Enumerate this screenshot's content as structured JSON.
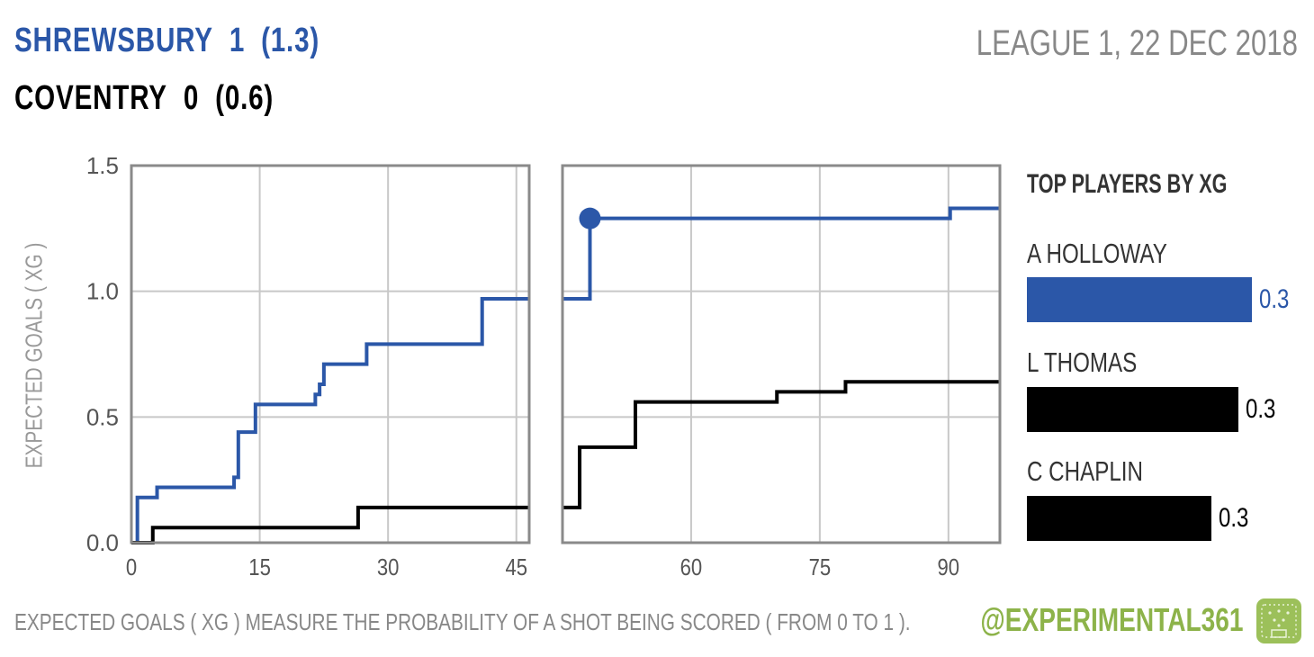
{
  "header": {
    "home_team": "SHREWSBURY",
    "home_goals": "1",
    "home_xg": "(1.3)",
    "away_team": "COVENTRY",
    "away_goals": "0",
    "away_xg": "(0.6)",
    "match_info": "LEAGUE 1, 22 DEC 2018"
  },
  "colors": {
    "home": "#2b57a8",
    "away": "#000000",
    "grid": "#c8c8c8",
    "frame": "#8a8a8a",
    "accent": "#8db34a"
  },
  "chart_data": {
    "type": "line",
    "step": true,
    "ylabel": "EXPECTED GOALS ( XG )",
    "ylim": [
      0,
      1.5
    ],
    "yticks": [
      "0.0",
      "0.5",
      "1.0",
      "1.5"
    ],
    "grid": true,
    "panels": [
      {
        "name": "first-half",
        "xlim": [
          0,
          46.5
        ],
        "xticks": [
          0,
          15,
          30,
          45
        ]
      },
      {
        "name": "second-half",
        "xlim": [
          45,
          96
        ],
        "xticks": [
          60,
          75,
          90
        ]
      }
    ],
    "series": [
      {
        "team": "SHREWSBURY",
        "color": "#2b57a8",
        "first_half": {
          "x": [
            0,
            0.7,
            3,
            12,
            12.5,
            14.5,
            21.5,
            22,
            22.5,
            27.5,
            41
          ],
          "y": [
            0,
            0.18,
            0.22,
            0.26,
            0.44,
            0.55,
            0.59,
            0.63,
            0.71,
            0.79,
            0.97
          ]
        },
        "second_half": {
          "x": [
            45,
            48.2,
            90.2
          ],
          "y": [
            0.97,
            1.29,
            1.33
          ]
        },
        "goals": [
          {
            "x": 48.2,
            "y": 1.29
          }
        ]
      },
      {
        "team": "COVENTRY",
        "color": "#000000",
        "first_half": {
          "x": [
            0,
            2.5,
            26.5
          ],
          "y": [
            0,
            0.06,
            0.14
          ]
        },
        "second_half": {
          "x": [
            45,
            47,
            53.5,
            70,
            78
          ],
          "y": [
            0.14,
            0.38,
            0.56,
            0.6,
            0.64
          ]
        },
        "goals": []
      }
    ],
    "end_minute": 96
  },
  "players": {
    "title": "TOP PLAYERS BY XG",
    "items": [
      {
        "name": "A HOLLOWAY",
        "value": 0.33,
        "label": "0.3",
        "team": "home"
      },
      {
        "name": "L THOMAS",
        "value": 0.31,
        "label": "0.3",
        "team": "away"
      },
      {
        "name": "C CHAPLIN",
        "value": 0.27,
        "label": "0.3",
        "team": "away"
      }
    ],
    "max": 0.33
  },
  "footer": {
    "note": "EXPECTED GOALS ( XG ) MEASURE THE PROBABILITY  OF A SHOT BEING SCORED ( FROM 0 TO 1 ).",
    "handle": "@EXPERIMENTAL361"
  }
}
